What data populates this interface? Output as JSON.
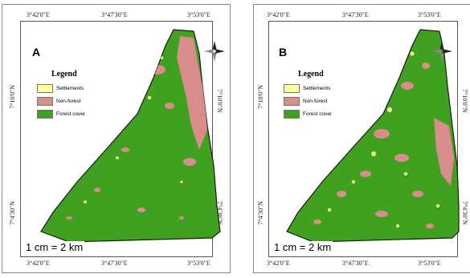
{
  "colors": {
    "settlements": "#ffff99",
    "non_forest": "#d98c8c",
    "forest_cover": "#3fa11f",
    "boundary": "#1a1a1a"
  },
  "panels": [
    {
      "id": "A",
      "letter": "A",
      "top_ticks": [
        "3°42'0\"E",
        "3°47'30\"E",
        "3°53'0\"E"
      ],
      "bottom_ticks": [
        "3°42'0\"E",
        "3°47'30\"E",
        "3°53'0\"E"
      ],
      "left_ticks": [
        "7°10'0\"N",
        "7°4'30\"N"
      ],
      "right_ticks": [
        "7°10'0\"N",
        "7°4'30\"N"
      ],
      "legend": {
        "title": "Legend",
        "items": [
          "Settlements",
          "Non-forest",
          "Forest cover"
        ]
      },
      "scale_text": "1 cm = 2 km",
      "north_arrow": "north-arrow-icon"
    },
    {
      "id": "B",
      "letter": "B",
      "top_ticks": [
        "3°42'0\"E",
        "3°47'30\"E",
        "3°53'0\"E"
      ],
      "bottom_ticks": [
        "3°42'0\"E",
        "3°47'30\"E",
        "3°53'0\"E"
      ],
      "left_ticks": [
        "7°10'0\"N",
        "7°4'30\"N"
      ],
      "right_ticks": [
        "7°10'0\"N",
        "7°4'30\"N"
      ],
      "legend": {
        "title": "Legend",
        "items": [
          "Settlements",
          "Non-forest",
          "Forest cover"
        ]
      },
      "scale_text": "1 cm = 2 km",
      "north_arrow": "north-arrow-icon"
    }
  ]
}
